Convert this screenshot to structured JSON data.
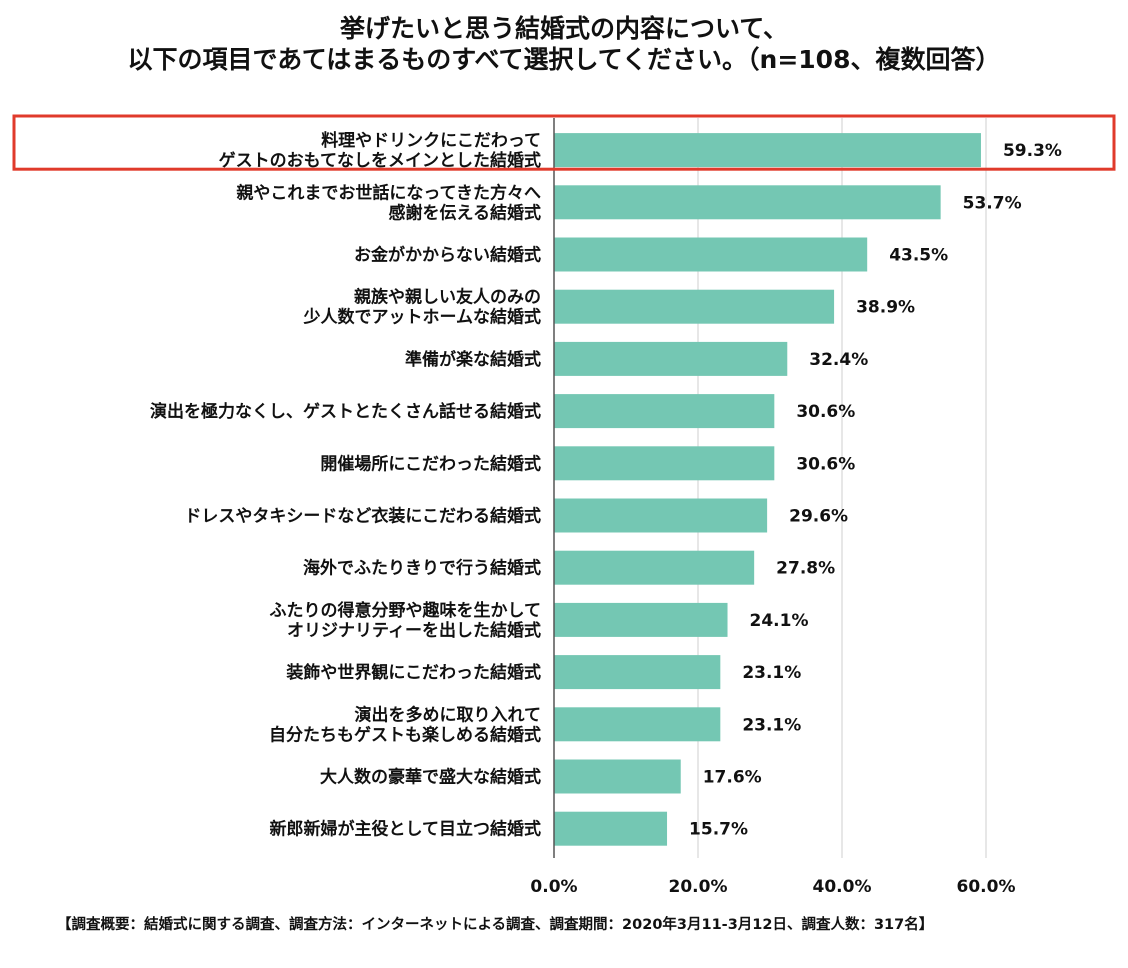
{
  "chart_data": {
    "type": "bar",
    "orientation": "horizontal",
    "title_lines": [
      "挙げたいと思う結婚式の内容について、",
      "以下の項目であてはまるものすべて選択してください。（n=108、複数回答）"
    ],
    "categories": [
      [
        "料理やドリンクにこだわって",
        "ゲストのおもてなしをメインとした結婚式"
      ],
      [
        "親やこれまでお世話になってきた方々へ",
        "感謝を伝える結婚式"
      ],
      [
        "お金がかからない結婚式"
      ],
      [
        "親族や親しい友人のみの",
        "少人数でアットホームな結婚式"
      ],
      [
        "準備が楽な結婚式"
      ],
      [
        "演出を極力なくし、ゲストとたくさん話せる結婚式"
      ],
      [
        "開催場所にこだわった結婚式"
      ],
      [
        "ドレスやタキシードなど衣装にこだわる結婚式"
      ],
      [
        "海外でふたりきりで行う結婚式"
      ],
      [
        "ふたりの得意分野や趣味を生かして",
        "オリジナリティーを出した結婚式"
      ],
      [
        "装飾や世界観にこだわった結婚式"
      ],
      [
        "演出を多めに取り入れて",
        "自分たちもゲストも楽しめる結婚式"
      ],
      [
        "大人数の豪華で盛大な結婚式"
      ],
      [
        "新郎新婦が主役として目立つ結婚式"
      ]
    ],
    "values": [
      59.3,
      53.7,
      43.5,
      38.9,
      32.4,
      30.6,
      30.6,
      29.6,
      27.8,
      24.1,
      23.1,
      23.1,
      17.6,
      15.7
    ],
    "value_labels": [
      "59.3%",
      "53.7%",
      "43.5%",
      "38.9%",
      "32.4%",
      "30.6%",
      "30.6%",
      "29.6%",
      "27.8%",
      "24.1%",
      "23.1%",
      "23.1%",
      "17.6%",
      "15.7%"
    ],
    "xlim": [
      0,
      60
    ],
    "xticks": [
      0,
      20,
      40,
      60
    ],
    "xtick_labels": [
      "0.0%",
      "20.0%",
      "40.0%",
      "60.0%"
    ],
    "grid": true,
    "highlighted_index": 0,
    "colors": {
      "bar": "#74c7b3",
      "highlight_border": "#e03a2b",
      "grid": "#cfcfcf",
      "axis": "#555555"
    }
  },
  "footnote": "【調査概要：結婚式に関する調査、調査方法：インターネットによる調査、調査期間：2020年3月11-3月12日、調査人数：317名】"
}
